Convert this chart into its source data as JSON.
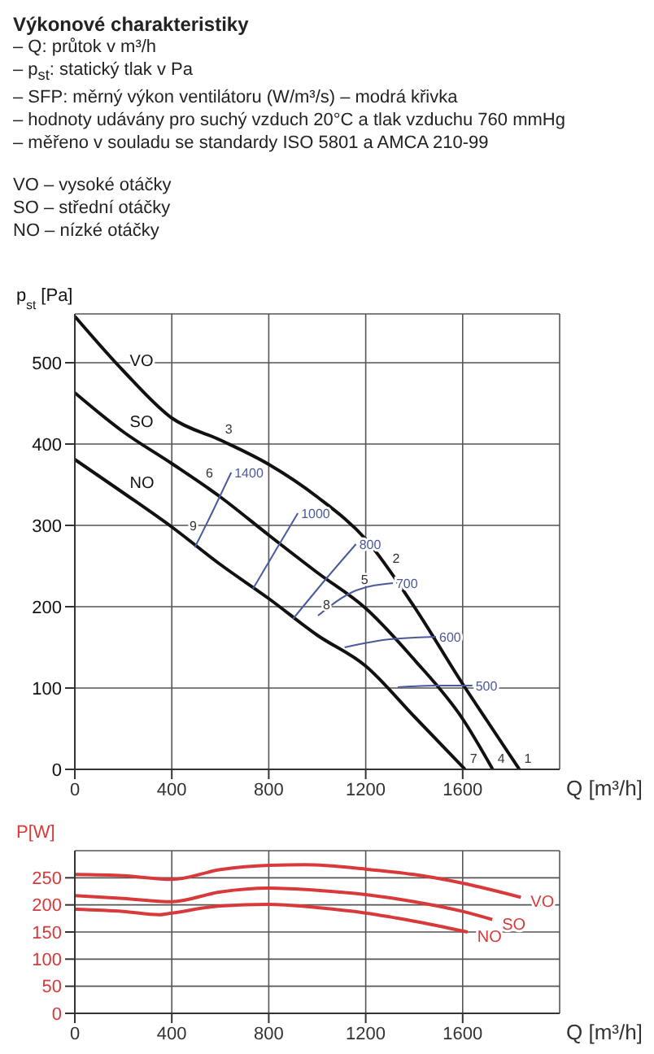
{
  "chart_data": [
    {
      "type": "line",
      "title": "Výkonové charakteristiky",
      "annotations": [
        "– Q: průtok v m³/h",
        "– p$_{st}$: statický tlak v Pa",
        "– SFP: měrný výkon ventilátoru (W/m³/s) – modrá křivka",
        "– hodnoty udávány pro suchý vzduch 20°C a tlak vzduchu 760 mmHg",
        "– měřeno v souladu se standardy ISO 5801 a AMCA 210-99",
        "VO – vysoké otáčky",
        "SO – střední otáčky",
        "NO – nízké otáčky",
        {
          "text": "1",
          "x": 1834,
          "y": 0
        },
        {
          "text": "2",
          "x": 1290,
          "y": 246
        },
        {
          "text": "3",
          "x": 600,
          "y": 405
        },
        {
          "text": "4",
          "x": 1724,
          "y": 0
        },
        {
          "text": "5",
          "x": 1160,
          "y": 220
        },
        {
          "text": "6",
          "x": 520,
          "y": 351
        },
        {
          "text": "7",
          "x": 1610,
          "y": 0
        },
        {
          "text": "8",
          "x": 1003,
          "y": 189
        },
        {
          "text": "9",
          "x": 453,
          "y": 286
        }
      ],
      "xlabel": "Q [m³/h]",
      "ylabel": "p$_{st}$ [Pa]",
      "xlim": [
        0,
        2000
      ],
      "xticks": [
        0,
        400,
        800,
        1200,
        1600
      ],
      "ylim": [
        0,
        560
      ],
      "yticks": [
        0,
        100,
        200,
        300,
        400,
        500
      ],
      "grid": true,
      "marker": "none",
      "series": [
        {
          "name": "VO",
          "color": "#111111",
          "x": [
            0,
            200,
            400,
            600,
            800,
            1000,
            1200,
            1400,
            1600,
            1700,
            1834
          ],
          "values": [
            557,
            490,
            432,
            405,
            375,
            335,
            283,
            200,
            105,
            60,
            0
          ]
        },
        {
          "name": "SO",
          "color": "#111111",
          "x": [
            0,
            200,
            400,
            600,
            800,
            1000,
            1200,
            1400,
            1600,
            1724
          ],
          "values": [
            463,
            415,
            376,
            335,
            288,
            242,
            198,
            135,
            62,
            0
          ]
        },
        {
          "name": "NO",
          "color": "#111111",
          "x": [
            0,
            200,
            400,
            600,
            800,
            1000,
            1200,
            1400,
            1610
          ],
          "values": [
            381,
            340,
            298,
            252,
            210,
            165,
            127,
            65,
            0
          ]
        },
        {
          "name": "1400",
          "color": "#4a5a9a",
          "x": [
            495,
            570,
            645
          ],
          "values": [
            273,
            318,
            365
          ]
        },
        {
          "name": "1000",
          "color": "#4a5a9a",
          "x": [
            735,
            830,
            920
          ],
          "values": [
            222,
            270,
            315
          ]
        },
        {
          "name": "800",
          "color": "#4a5a9a",
          "x": [
            900,
            1030,
            1160
          ],
          "values": [
            185,
            232,
            277
          ]
        },
        {
          "name": "700",
          "color": "#4a5a9a",
          "x": [
            1003,
            1160,
            1312
          ],
          "values": [
            189,
            220,
            229
          ]
        },
        {
          "name": "600",
          "color": "#4a5a9a",
          "x": [
            1113,
            1300,
            1490
          ],
          "values": [
            150,
            160,
            163
          ]
        },
        {
          "name": "500",
          "color": "#4a5a9a",
          "x": [
            1332,
            1490,
            1640
          ],
          "values": [
            101,
            103,
            103
          ]
        }
      ]
    },
    {
      "type": "line",
      "xlabel": "Q [m³/h]",
      "ylabel": "P[W]",
      "xlim": [
        0,
        2000
      ],
      "xticks": [
        0,
        400,
        800,
        1200,
        1600
      ],
      "ylim": [
        0,
        300
      ],
      "yticks": [
        0,
        50,
        100,
        150,
        200,
        250
      ],
      "grid": true,
      "marker": "none",
      "series": [
        {
          "name": "VO",
          "color": "#d8393a",
          "x": [
            0,
            200,
            400,
            600,
            800,
            950,
            1200,
            1400,
            1600,
            1840
          ],
          "values": [
            256,
            254,
            247,
            265,
            273,
            274,
            266,
            256,
            240,
            214
          ]
        },
        {
          "name": "SO",
          "color": "#d8393a",
          "x": [
            0,
            200,
            400,
            600,
            800,
            1000,
            1200,
            1400,
            1600,
            1722
          ],
          "values": [
            217,
            212,
            206,
            224,
            231,
            227,
            219,
            206,
            188,
            173
          ]
        },
        {
          "name": "NO",
          "color": "#d8393a",
          "x": [
            0,
            200,
            350,
            400,
            600,
            800,
            1000,
            1200,
            1400,
            1620
          ],
          "values": [
            192,
            188,
            182,
            185,
            198,
            201,
            195,
            185,
            170,
            150
          ]
        }
      ]
    }
  ]
}
